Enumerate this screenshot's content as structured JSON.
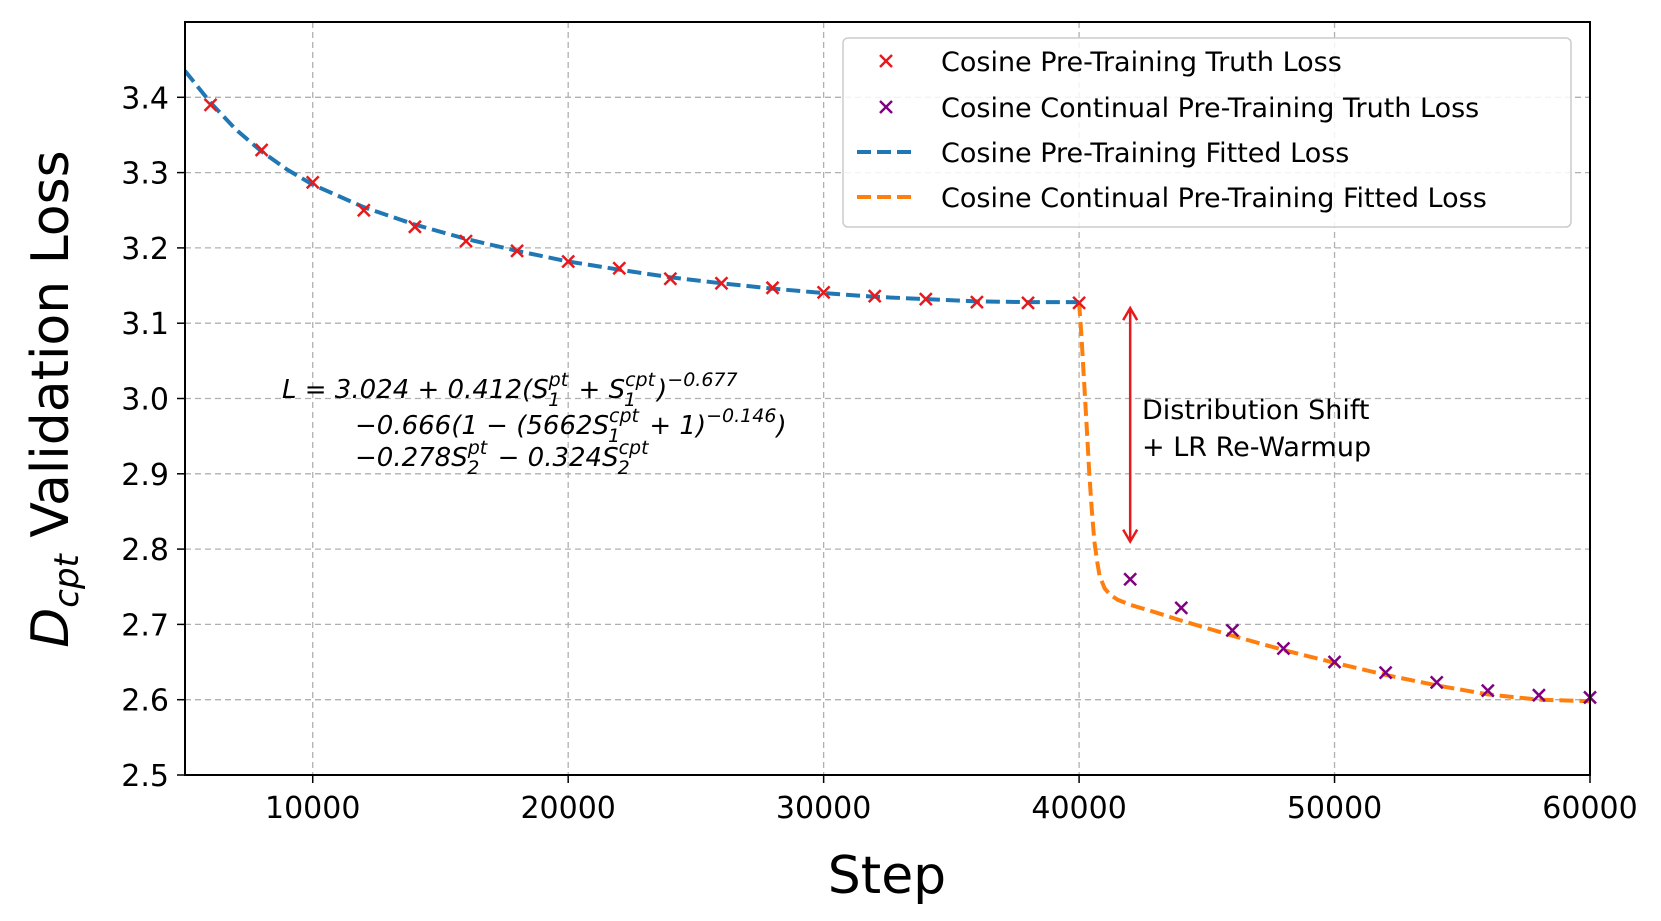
{
  "chart_data": {
    "type": "line",
    "xlabel": "Step",
    "ylabel_main": "D",
    "ylabel_subscript": "cpt",
    "ylabel_rest": " Validation Loss",
    "xlim": [
      5000,
      60000
    ],
    "ylim": [
      2.5,
      3.5
    ],
    "grid": true,
    "xticks": [
      10000,
      20000,
      30000,
      40000,
      50000,
      60000
    ],
    "yticks": [
      2.5,
      2.6,
      2.7,
      2.8,
      2.9,
      3.0,
      3.1,
      3.2,
      3.3,
      3.4
    ],
    "xtick_labels": [
      "10000",
      "20000",
      "30000",
      "40000",
      "50000",
      "60000"
    ],
    "ytick_labels": [
      "2.5",
      "2.6",
      "2.7",
      "2.8",
      "2.9",
      "3.0",
      "3.1",
      "3.2",
      "3.3",
      "3.4"
    ],
    "legend_position": "top-right",
    "series": [
      {
        "name": "Cosine Pre-Training Truth Loss",
        "kind": "scatter",
        "marker": "x",
        "color": "#e8191c",
        "x": [
          6000,
          8000,
          10000,
          12000,
          14000,
          16000,
          18000,
          20000,
          22000,
          24000,
          26000,
          28000,
          30000,
          32000,
          34000,
          36000,
          38000,
          40000
        ],
        "y": [
          3.39,
          3.33,
          3.287,
          3.25,
          3.228,
          3.209,
          3.196,
          3.182,
          3.173,
          3.159,
          3.153,
          3.147,
          3.141,
          3.136,
          3.132,
          3.128,
          3.127,
          3.127
        ]
      },
      {
        "name": "Cosine Continual Pre-Training Truth Loss",
        "kind": "scatter",
        "marker": "x",
        "color": "#800080",
        "x": [
          42000,
          44000,
          46000,
          48000,
          50000,
          52000,
          54000,
          56000,
          58000,
          60000
        ],
        "y": [
          2.76,
          2.722,
          2.692,
          2.668,
          2.65,
          2.636,
          2.623,
          2.612,
          2.606,
          2.603
        ]
      },
      {
        "name": "Cosine Pre-Training Fitted Loss",
        "kind": "line",
        "dash": "dashed",
        "color": "#1f77b4",
        "x": [
          5000,
          6000,
          7000,
          8000,
          9000,
          10000,
          12000,
          14000,
          16000,
          18000,
          20000,
          22000,
          24000,
          26000,
          28000,
          30000,
          32000,
          34000,
          36000,
          38000,
          40000
        ],
        "y": [
          3.435,
          3.393,
          3.357,
          3.328,
          3.304,
          3.284,
          3.254,
          3.231,
          3.212,
          3.196,
          3.182,
          3.171,
          3.161,
          3.153,
          3.146,
          3.14,
          3.135,
          3.132,
          3.129,
          3.128,
          3.128
        ]
      },
      {
        "name": "Cosine Continual Pre-Training Fitted Loss",
        "kind": "line",
        "dash": "dashed",
        "color": "#ff7f0e",
        "x": [
          40000,
          40100,
          40200,
          40300,
          40400,
          40500,
          40600,
          40700,
          40800,
          41000,
          41200,
          41500,
          42000,
          43000,
          44000,
          46000,
          48000,
          50000,
          52000,
          54000,
          56000,
          58000,
          60000
        ],
        "y": [
          3.128,
          3.08,
          3.02,
          2.96,
          2.9,
          2.85,
          2.81,
          2.785,
          2.765,
          2.748,
          2.74,
          2.733,
          2.726,
          2.716,
          2.705,
          2.685,
          2.666,
          2.649,
          2.633,
          2.619,
          2.607,
          2.6,
          2.598
        ]
      }
    ],
    "annotations": [
      {
        "kind": "double-arrow",
        "color": "#e8191c",
        "x": 42000,
        "y_from": 2.81,
        "y_to": 3.12,
        "text_lines": [
          "Distribution Shift",
          "+ LR Re-Warmup"
        ]
      }
    ],
    "formula": {
      "line1": {
        "a": "L = 3.024 + 0.412(S",
        "a_sub": "1",
        "a_sup": "pt",
        "b": " + S",
        "b_sub": "1",
        "b_sup": "cpt",
        "c": ")",
        "c_sup": "−0.677"
      },
      "line2": {
        "a": "−0.666(1 − (5662S",
        "a_sub": "1",
        "a_sup": "cpt",
        "b": " + 1)",
        "b_sup": "−0.146",
        "c": ")"
      },
      "line3": {
        "a": "−0.278S",
        "a_sub": "2",
        "a_sup": "pt",
        "b": " − 0.324S",
        "b_sub": "2",
        "b_sup": "cpt"
      }
    }
  }
}
